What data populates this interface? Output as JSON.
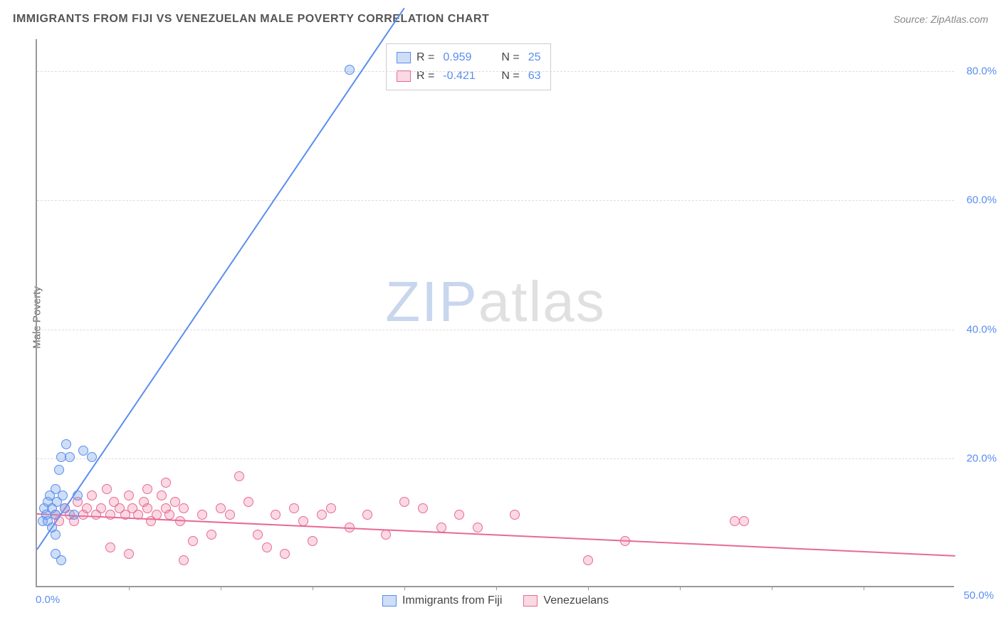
{
  "title": "IMMIGRANTS FROM FIJI VS VENEZUELAN MALE POVERTY CORRELATION CHART",
  "source_label": "Source: ZipAtlas.com",
  "y_axis_label": "Male Poverty",
  "watermark": {
    "part1": "ZIP",
    "part2": "atlas"
  },
  "colors": {
    "title": "#555555",
    "source": "#888888",
    "axis": "#999999",
    "grid": "#dddddd",
    "tick_label": "#5b8def",
    "series_a_fill": "rgba(115,160,230,0.35)",
    "series_a_stroke": "#5b8def",
    "series_b_fill": "rgba(240,130,160,0.30)",
    "series_b_stroke": "#e86a94",
    "background": "#ffffff"
  },
  "chart": {
    "type": "scatter",
    "xlim": [
      0,
      50
    ],
    "ylim": [
      0,
      85
    ],
    "x_ticks": [
      0,
      50
    ],
    "x_tick_labels": [
      "0.0%",
      "50.0%"
    ],
    "x_minor_ticks": [
      5,
      10,
      15,
      20,
      25,
      30,
      35,
      40,
      45
    ],
    "y_ticks": [
      20,
      40,
      60,
      80
    ],
    "y_tick_labels": [
      "20.0%",
      "40.0%",
      "60.0%",
      "80.0%"
    ],
    "point_radius": 7,
    "point_border_width": 1.2,
    "line_width": 2
  },
  "stats_legend": {
    "rows": [
      {
        "swatch": "a",
        "r_label": "R =",
        "r_value": "0.959",
        "n_label": "N =",
        "n_value": "25"
      },
      {
        "swatch": "b",
        "r_label": "R =",
        "r_value": "-0.421",
        "n_label": "N =",
        "n_value": "63"
      }
    ]
  },
  "bottom_legend": [
    {
      "swatch": "a",
      "label": "Immigrants from Fiji"
    },
    {
      "swatch": "b",
      "label": "Venezuelans"
    }
  ],
  "series_a": {
    "name": "Immigrants from Fiji",
    "trend": {
      "x1": 0,
      "y1": 6,
      "x2": 20,
      "y2": 90
    },
    "points": [
      [
        0.3,
        10
      ],
      [
        0.4,
        12
      ],
      [
        0.5,
        11
      ],
      [
        0.6,
        13
      ],
      [
        0.6,
        10
      ],
      [
        0.7,
        14
      ],
      [
        0.8,
        12
      ],
      [
        0.8,
        9
      ],
      [
        1.0,
        15
      ],
      [
        1.0,
        11
      ],
      [
        1.1,
        13
      ],
      [
        1.2,
        18
      ],
      [
        1.3,
        20
      ],
      [
        1.4,
        14
      ],
      [
        1.5,
        12
      ],
      [
        1.6,
        22
      ],
      [
        1.8,
        20
      ],
      [
        2.0,
        11
      ],
      [
        2.2,
        14
      ],
      [
        2.5,
        21
      ],
      [
        3.0,
        20
      ],
      [
        1.0,
        5
      ],
      [
        1.3,
        4
      ],
      [
        1.0,
        8
      ],
      [
        17.0,
        80
      ]
    ]
  },
  "series_b": {
    "name": "Venezuelans",
    "trend": {
      "x1": 0,
      "y1": 11.5,
      "x2": 50,
      "y2": 5
    },
    "points": [
      [
        1.0,
        11
      ],
      [
        1.2,
        10
      ],
      [
        1.5,
        12
      ],
      [
        1.8,
        11
      ],
      [
        2.0,
        10
      ],
      [
        2.2,
        13
      ],
      [
        2.5,
        11
      ],
      [
        2.7,
        12
      ],
      [
        3.0,
        14
      ],
      [
        3.2,
        11
      ],
      [
        3.5,
        12
      ],
      [
        3.8,
        15
      ],
      [
        4.0,
        11
      ],
      [
        4.2,
        13
      ],
      [
        4.5,
        12
      ],
      [
        4.8,
        11
      ],
      [
        5.0,
        14
      ],
      [
        5.2,
        12
      ],
      [
        5.5,
        11
      ],
      [
        5.8,
        13
      ],
      [
        6.0,
        12
      ],
      [
        6.2,
        10
      ],
      [
        6.5,
        11
      ],
      [
        6.8,
        14
      ],
      [
        7.0,
        12
      ],
      [
        7.2,
        11
      ],
      [
        7.5,
        13
      ],
      [
        7.8,
        10
      ],
      [
        8.0,
        12
      ],
      [
        8.5,
        7
      ],
      [
        9.0,
        11
      ],
      [
        9.5,
        8
      ],
      [
        10.0,
        12
      ],
      [
        10.5,
        11
      ],
      [
        11.0,
        17
      ],
      [
        11.5,
        13
      ],
      [
        12.0,
        8
      ],
      [
        12.5,
        6
      ],
      [
        13.0,
        11
      ],
      [
        13.5,
        5
      ],
      [
        14.0,
        12
      ],
      [
        14.5,
        10
      ],
      [
        15.0,
        7
      ],
      [
        15.5,
        11
      ],
      [
        16.0,
        12
      ],
      [
        17.0,
        9
      ],
      [
        18.0,
        11
      ],
      [
        19.0,
        8
      ],
      [
        20.0,
        13
      ],
      [
        21.0,
        12
      ],
      [
        22.0,
        9
      ],
      [
        23.0,
        11
      ],
      [
        24.0,
        9
      ],
      [
        26.0,
        11
      ],
      [
        30.0,
        4
      ],
      [
        32.0,
        7
      ],
      [
        38.0,
        10
      ],
      [
        38.5,
        10
      ],
      [
        4.0,
        6
      ],
      [
        5.0,
        5
      ],
      [
        6.0,
        15
      ],
      [
        7.0,
        16
      ],
      [
        8.0,
        4
      ]
    ]
  }
}
